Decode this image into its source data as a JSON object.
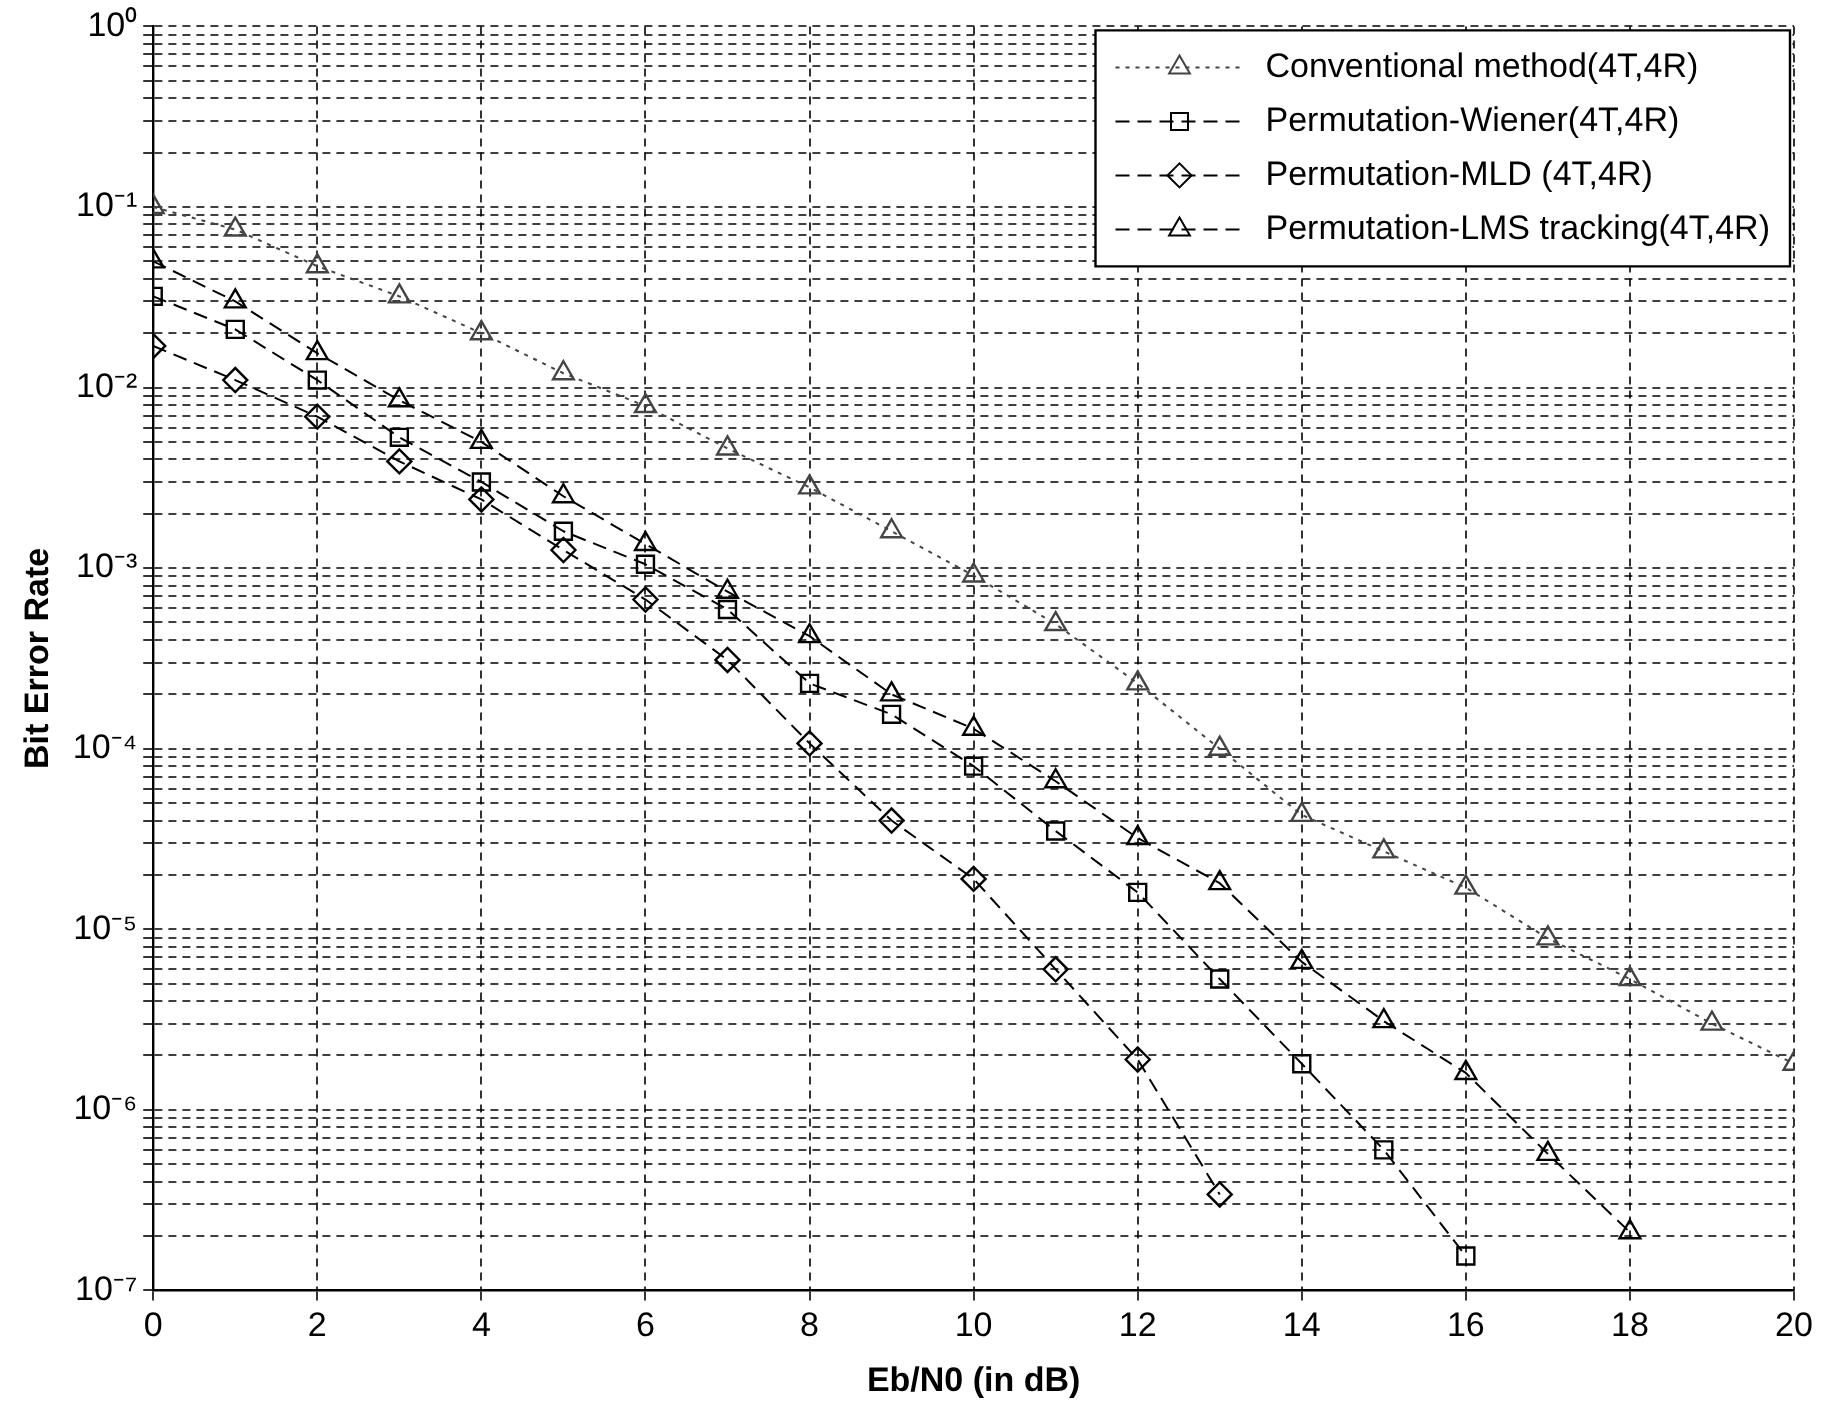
{
  "chart_data": {
    "type": "line",
    "xlabel": "Eb/N0 (in dB)",
    "ylabel": "Bit Error Rate",
    "x": [
      0,
      1,
      2,
      3,
      4,
      5,
      6,
      7,
      8,
      9,
      10,
      11,
      12,
      13,
      14,
      15,
      16,
      17,
      18,
      19,
      20
    ],
    "series": [
      {
        "name": "Conventional method(4T,4R)",
        "color": "#444444",
        "marker": "triangle",
        "line_style": "dotted",
        "values": [
          0.1,
          0.075,
          0.047,
          0.032,
          0.02,
          0.012,
          0.0079,
          0.0046,
          0.0028,
          0.0016,
          0.00091,
          0.00049,
          0.00023,
          0.0001,
          4.3e-05,
          2.7e-05,
          1.7e-05,
          8.9e-06,
          5.3e-06,
          3e-06,
          1.8e-06
        ]
      },
      {
        "name": "Permutation-Wiener(4T,4R)",
        "color": "#000000",
        "marker": "square",
        "line_style": "dashed",
        "values": [
          0.032,
          0.021,
          0.011,
          0.0053,
          0.003,
          0.0016,
          0.00105,
          0.00059,
          0.00023,
          0.000155,
          8e-05,
          3.5e-05,
          1.6e-05,
          5.3e-06,
          1.8e-06,
          6e-07,
          1.55e-07,
          null,
          null,
          null,
          null
        ]
      },
      {
        "name": "Permutation-MLD (4T,4R)",
        "color": "#000000",
        "marker": "diamond",
        "line_style": "dashed",
        "values": [
          0.017,
          0.011,
          0.0069,
          0.0039,
          0.0024,
          0.00126,
          0.00067,
          0.00031,
          0.000107,
          4e-05,
          1.9e-05,
          6e-06,
          1.9e-06,
          3.4e-07,
          null,
          null,
          null,
          null,
          null,
          null,
          null
        ]
      },
      {
        "name": "Permutation-LMS tracking(4T,4R)",
        "color": "#000000",
        "marker": "triangle",
        "line_style": "dashed",
        "values": [
          0.05,
          0.03,
          0.0155,
          0.0085,
          0.005,
          0.0025,
          0.00136,
          0.00074,
          0.00042,
          0.0002,
          0.000129,
          6.6e-05,
          3.2e-05,
          1.8e-05,
          6.6e-06,
          3.1e-06,
          1.6e-06,
          5.7e-07,
          2.1e-07,
          null,
          null
        ]
      }
    ],
    "log": "y",
    "grid": true,
    "legend": "top right",
    "xlim": [
      0,
      20
    ],
    "xticks": [
      0,
      2,
      4,
      6,
      8,
      10,
      12,
      14,
      16,
      18,
      20
    ],
    "ylim": [
      1e-07,
      1
    ],
    "yticks": [
      {
        "value": 1e-07,
        "label": "10⁻⁷"
      },
      {
        "value": 2e-07,
        "label": null
      },
      {
        "value": 3e-07,
        "label": null
      },
      {
        "value": 4e-07,
        "label": null
      },
      {
        "value": 5e-07,
        "label": null
      },
      {
        "value": 6e-07,
        "label": null
      },
      {
        "value": 7e-07,
        "label": null
      },
      {
        "value": 8e-07,
        "label": null
      },
      {
        "value": 9e-07,
        "label": null
      },
      {
        "value": 1e-06,
        "label": "10⁻⁶"
      },
      {
        "value": 2e-06,
        "label": null
      },
      {
        "value": 3e-06,
        "label": null
      },
      {
        "value": 4e-06,
        "label": null
      },
      {
        "value": 5e-06,
        "label": null
      },
      {
        "value": 6e-06,
        "label": null
      },
      {
        "value": 7e-06,
        "label": null
      },
      {
        "value": 8e-06,
        "label": null
      },
      {
        "value": 9e-06,
        "label": null
      },
      {
        "value": 1e-05,
        "label": "10⁻⁵"
      },
      {
        "value": 2e-05,
        "label": null
      },
      {
        "value": 3e-05,
        "label": null
      },
      {
        "value": 4e-05,
        "label": null
      },
      {
        "value": 5e-05,
        "label": null
      },
      {
        "value": 6e-05,
        "label": null
      },
      {
        "value": 7e-05,
        "label": null
      },
      {
        "value": 8e-05,
        "label": null
      },
      {
        "value": 9e-05,
        "label": null
      },
      {
        "value": 0.0001,
        "label": "10⁻⁴"
      },
      {
        "value": 0.0002,
        "label": null
      },
      {
        "value": 0.0003,
        "label": null
      },
      {
        "value": 0.0004,
        "label": null
      },
      {
        "value": 0.0005,
        "label": null
      },
      {
        "value": 0.0006,
        "label": null
      },
      {
        "value": 0.0007,
        "label": null
      },
      {
        "value": 0.0008,
        "label": null
      },
      {
        "value": 0.0009,
        "label": null
      },
      {
        "value": 0.001,
        "label": "10⁻³"
      },
      {
        "value": 0.002,
        "label": null
      },
      {
        "value": 0.003,
        "label": null
      },
      {
        "value": 0.004,
        "label": null
      },
      {
        "value": 0.005,
        "label": null
      },
      {
        "value": 0.006,
        "label": null
      },
      {
        "value": 0.007,
        "label": null
      },
      {
        "value": 0.008,
        "label": null
      },
      {
        "value": 0.009,
        "label": null
      },
      {
        "value": 0.01,
        "label": "10⁻²"
      },
      {
        "value": 0.02,
        "label": null
      },
      {
        "value": 0.03,
        "label": null
      },
      {
        "value": 0.04,
        "label": null
      },
      {
        "value": 0.05,
        "label": null
      },
      {
        "value": 0.06,
        "label": null
      },
      {
        "value": 0.07,
        "label": null
      },
      {
        "value": 0.08,
        "label": null
      },
      {
        "value": 0.09,
        "label": null
      },
      {
        "value": 0.1,
        "label": "10⁻¹"
      },
      {
        "value": 0.2,
        "label": null
      },
      {
        "value": 0.3,
        "label": null
      },
      {
        "value": 0.4,
        "label": null
      },
      {
        "value": 0.5,
        "label": null
      },
      {
        "value": 0.6,
        "label": null
      },
      {
        "value": 0.7,
        "label": null
      },
      {
        "value": 0.8,
        "label": null
      },
      {
        "value": 0.9,
        "label": null
      },
      {
        "value": 1,
        "label": "10⁰"
      }
    ]
  }
}
